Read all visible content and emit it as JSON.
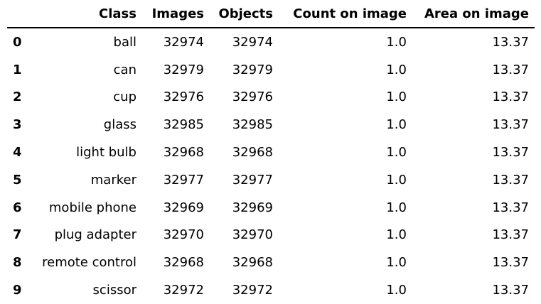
{
  "table": {
    "columns": [
      "",
      "Class",
      "Images",
      "Objects",
      "Count on image",
      "Area on image"
    ],
    "rows": [
      [
        "0",
        "ball",
        "32974",
        "32974",
        "1.0",
        "13.37"
      ],
      [
        "1",
        "can",
        "32979",
        "32979",
        "1.0",
        "13.37"
      ],
      [
        "2",
        "cup",
        "32976",
        "32976",
        "1.0",
        "13.37"
      ],
      [
        "3",
        "glass",
        "32985",
        "32985",
        "1.0",
        "13.37"
      ],
      [
        "4",
        "light bulb",
        "32968",
        "32968",
        "1.0",
        "13.37"
      ],
      [
        "5",
        "marker",
        "32977",
        "32977",
        "1.0",
        "13.37"
      ],
      [
        "6",
        "mobile phone",
        "32969",
        "32969",
        "1.0",
        "13.37"
      ],
      [
        "7",
        "plug adapter",
        "32970",
        "32970",
        "1.0",
        "13.37"
      ],
      [
        "8",
        "remote control",
        "32968",
        "32968",
        "1.0",
        "13.37"
      ],
      [
        "9",
        "scissor",
        "32972",
        "32972",
        "1.0",
        "13.37"
      ]
    ]
  }
}
